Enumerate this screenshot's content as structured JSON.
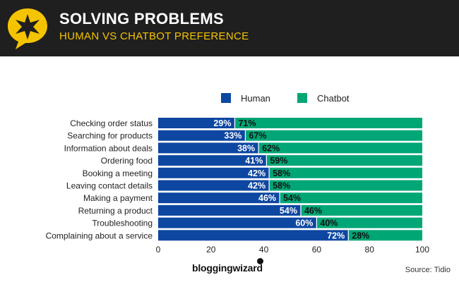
{
  "header": {
    "title": "SOLVING PROBLEMS",
    "subtitle": "HUMAN VS CHATBOT PREFERENCE",
    "logo_icon": "star-speech-bubble-icon"
  },
  "colors": {
    "human": "#0d47a1",
    "chatbot": "#00a676",
    "header_bg": "#1f1f1f",
    "accent": "#f5c400"
  },
  "chart_data": {
    "type": "bar",
    "orientation": "horizontal",
    "stacked": true,
    "categories": [
      "Checking order status",
      "Searching for products",
      "Information about deals",
      "Ordering food",
      "Booking a meeting",
      "Leaving contact details",
      "Making a payment",
      "Returning a product",
      "Troubleshooting",
      "Complaining about a service"
    ],
    "series": [
      {
        "name": "Human",
        "values": [
          29,
          33,
          38,
          41,
          42,
          42,
          46,
          54,
          60,
          72
        ]
      },
      {
        "name": "Chatbot",
        "values": [
          71,
          67,
          62,
          59,
          58,
          58,
          54,
          46,
          40,
          28
        ]
      }
    ],
    "data_labels": {
      "Human": [
        "29%",
        "33%",
        "38%",
        "41%",
        "42%",
        "42%",
        "46%",
        "54%",
        "60%",
        "72%"
      ],
      "Chatbot": [
        "71%",
        "67%",
        "62%",
        "59%",
        "58%",
        "58%",
        "54%",
        "46%",
        "40%",
        "28%"
      ]
    },
    "xlim": [
      0,
      100
    ],
    "xticks": [
      0,
      20,
      40,
      60,
      80,
      100
    ],
    "xtick_labels": [
      "0",
      "20",
      "40",
      "60",
      "80",
      "100"
    ],
    "legend": [
      "Human",
      "Chatbot"
    ],
    "legend_position": "top-right"
  },
  "footer": {
    "brand": "bloggingwizard",
    "source": "Source:  Tidio"
  }
}
